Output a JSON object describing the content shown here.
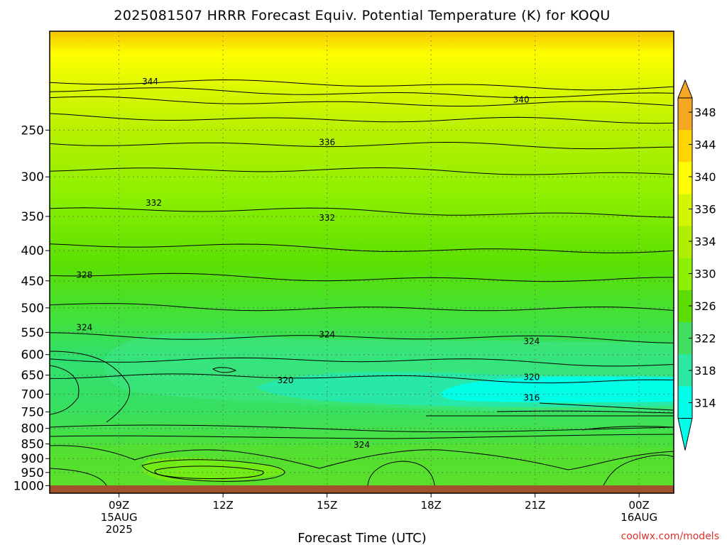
{
  "chart_data": {
    "type": "contour",
    "title": "2025081507 HRRR Forecast Equiv. Potential Temperature (K) for KOQU",
    "xlabel": "Forecast Time (UTC)",
    "ylabel": "",
    "x_ticks": [
      {
        "hour": 9,
        "lines": [
          "09Z",
          "15AUG",
          "2025"
        ]
      },
      {
        "hour": 12,
        "lines": [
          "12Z"
        ]
      },
      {
        "hour": 15,
        "lines": [
          "15Z"
        ]
      },
      {
        "hour": 18,
        "lines": [
          "18Z"
        ]
      },
      {
        "hour": 21,
        "lines": [
          "21Z"
        ]
      },
      {
        "hour": 24,
        "lines": [
          "00Z",
          "16AUG"
        ]
      }
    ],
    "xlim_hours": [
      7.0,
      25.0
    ],
    "y_scale": "log",
    "ylim_hpa": [
      1030,
      170
    ],
    "y_ticks": [
      "250",
      "300",
      "350",
      "400",
      "450",
      "500",
      "550",
      "600",
      "650",
      "700",
      "750",
      "800",
      "850",
      "900",
      "950",
      "1000"
    ],
    "grid": true,
    "colorbar": {
      "labels": [
        "348",
        "344",
        "340",
        "336",
        "334",
        "330",
        "326",
        "322",
        "318",
        "314"
      ],
      "colors": [
        "#f5a623",
        "#ffd400",
        "#ffff00",
        "#d4f500",
        "#b0ee00",
        "#8ef000",
        "#5cdc00",
        "#3fe060",
        "#2de8a0",
        "#00ffe8"
      ]
    },
    "contour_levels": [
      {
        "value": 344,
        "hpa": 207
      },
      {
        "value": 342,
        "hpa": 214
      },
      {
        "value": 340,
        "hpa": 222
      },
      {
        "value": 338,
        "hpa": 237
      },
      {
        "value": 336,
        "hpa": 262
      },
      {
        "value": 334,
        "hpa": 290
      },
      {
        "value": 332,
        "hpa": 340
      },
      {
        "value": 330,
        "hpa": 392
      },
      {
        "value": 328,
        "hpa": 440
      },
      {
        "value": 326,
        "hpa": 495
      },
      {
        "value": 324,
        "hpa": 555
      },
      {
        "value": 322,
        "hpa": 608
      },
      {
        "value": 320,
        "hpa": 650
      }
    ],
    "contour_labels": [
      {
        "text": "344",
        "hour": 9.9,
        "hpa": 207
      },
      {
        "text": "340",
        "hour": 20.6,
        "hpa": 222
      },
      {
        "text": "336",
        "hour": 15.0,
        "hpa": 262
      },
      {
        "text": "332",
        "hour": 10.0,
        "hpa": 332
      },
      {
        "text": "332",
        "hour": 15.0,
        "hpa": 352
      },
      {
        "text": "328",
        "hour": 8.0,
        "hpa": 440
      },
      {
        "text": "324",
        "hour": 8.0,
        "hpa": 540
      },
      {
        "text": "324",
        "hour": 15.0,
        "hpa": 555
      },
      {
        "text": "324",
        "hour": 20.9,
        "hpa": 570
      },
      {
        "text": "320",
        "hour": 13.8,
        "hpa": 663
      },
      {
        "text": "320",
        "hour": 20.9,
        "hpa": 655
      },
      {
        "text": "316",
        "hour": 20.9,
        "hpa": 710
      },
      {
        "text": "324",
        "hour": 16.0,
        "hpa": 853
      }
    ]
  },
  "credit": "coolwx.com/models"
}
